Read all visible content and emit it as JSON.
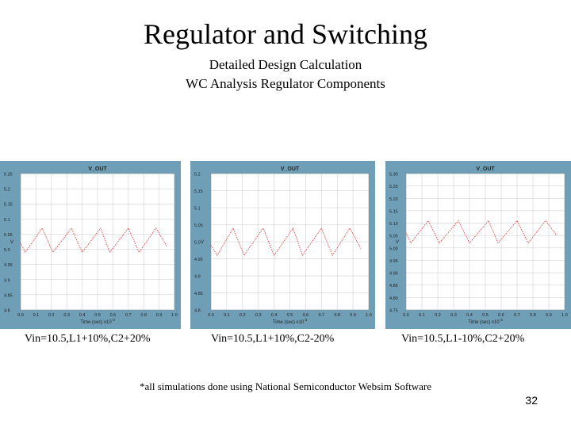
{
  "slide": {
    "title": "Regulator and Switching",
    "subtitle_line1": "Detailed Design Calculation",
    "subtitle_line2": "WC Analysis Regulator Components",
    "footnote": "*all simulations done using National Semiconductor Websim Software",
    "page_number": "32"
  },
  "colors": {
    "panel": "#6f9fb6",
    "trace": "#e04848",
    "plot_bg": "#ffffff",
    "grid": "#c8c8c8"
  },
  "chart_data": [
    {
      "type": "line",
      "title": "V_OUT",
      "xlabel": "Time (sec)",
      "xlabel_mult": "x10",
      "xlabel_exp": "-3",
      "ylabel": "V",
      "caption": "Vin=10.5,L1+10%,C2+20%",
      "xlim": [
        0,
        1.0
      ],
      "ylim": [
        4.8,
        5.25
      ],
      "x_ticks": [
        "0.0",
        "0.1",
        "0.2",
        "0.3",
        "0.4",
        "0.5",
        "0.6",
        "0.7",
        "0.8",
        "0.9",
        "1.0"
      ],
      "y_ticks": [
        "5.25",
        "5.2",
        "5.15",
        "5.1",
        "5.05",
        "5.0",
        "4.95",
        "4.9",
        "4.85",
        "4.8"
      ],
      "series": [
        {
          "x": [
            0.0,
            0.03,
            0.14,
            0.21,
            0.33,
            0.4,
            0.52,
            0.58,
            0.7,
            0.77,
            0.88,
            0.95
          ],
          "values": [
            5.02,
            4.99,
            5.07,
            4.99,
            5.07,
            4.99,
            5.07,
            4.99,
            5.07,
            4.99,
            5.07,
            5.01
          ]
        }
      ]
    },
    {
      "type": "line",
      "title": "V_OUT",
      "xlabel": "Time (sec)",
      "xlabel_mult": "x10",
      "xlabel_exp": "-3",
      "ylabel": "V",
      "caption": "Vin=10.5,L1+10%,C2-20%",
      "xlim": [
        0,
        1.0
      ],
      "ylim": [
        4.8,
        5.2
      ],
      "x_ticks": [
        "0.0",
        "0.1",
        "0.2",
        "0.3",
        "0.4",
        "0.5",
        "0.6",
        "0.7",
        "0.8",
        "0.9",
        "1.0"
      ],
      "y_ticks": [
        "5.2",
        "5.15",
        "5.1",
        "5.05",
        "5.0",
        "4.95",
        "4.9",
        "4.85",
        "4.8"
      ],
      "series": [
        {
          "x": [
            0.0,
            0.04,
            0.14,
            0.21,
            0.33,
            0.4,
            0.52,
            0.58,
            0.7,
            0.77,
            0.88,
            0.95
          ],
          "values": [
            4.99,
            4.96,
            5.04,
            4.96,
            5.04,
            4.96,
            5.04,
            4.96,
            5.04,
            4.96,
            5.04,
            4.98
          ]
        }
      ]
    },
    {
      "type": "line",
      "title": "V_OUT",
      "xlabel": "Time (sec)",
      "xlabel_mult": "x10",
      "xlabel_exp": "-3",
      "ylabel": "V",
      "caption": "Vin=10.5,L1-10%,C2+20%",
      "xlim": [
        0,
        1.0
      ],
      "ylim": [
        4.75,
        5.3
      ],
      "x_ticks": [
        "0.0",
        "0.1",
        "0.2",
        "0.3",
        "0.4",
        "0.5",
        "0.6",
        "0.7",
        "0.8",
        "0.9",
        "1.0"
      ],
      "y_ticks": [
        "5.30",
        "5.25",
        "5.20",
        "5.15",
        "5.10",
        "5.05",
        "5.00",
        "4.95",
        "4.90",
        "4.85",
        "4.80",
        "4.75"
      ],
      "series": [
        {
          "x": [
            0.0,
            0.03,
            0.14,
            0.21,
            0.33,
            0.4,
            0.52,
            0.58,
            0.7,
            0.77,
            0.88,
            0.95
          ],
          "values": [
            5.06,
            5.02,
            5.11,
            5.02,
            5.11,
            5.02,
            5.11,
            5.02,
            5.11,
            5.02,
            5.11,
            5.05
          ]
        }
      ]
    }
  ]
}
